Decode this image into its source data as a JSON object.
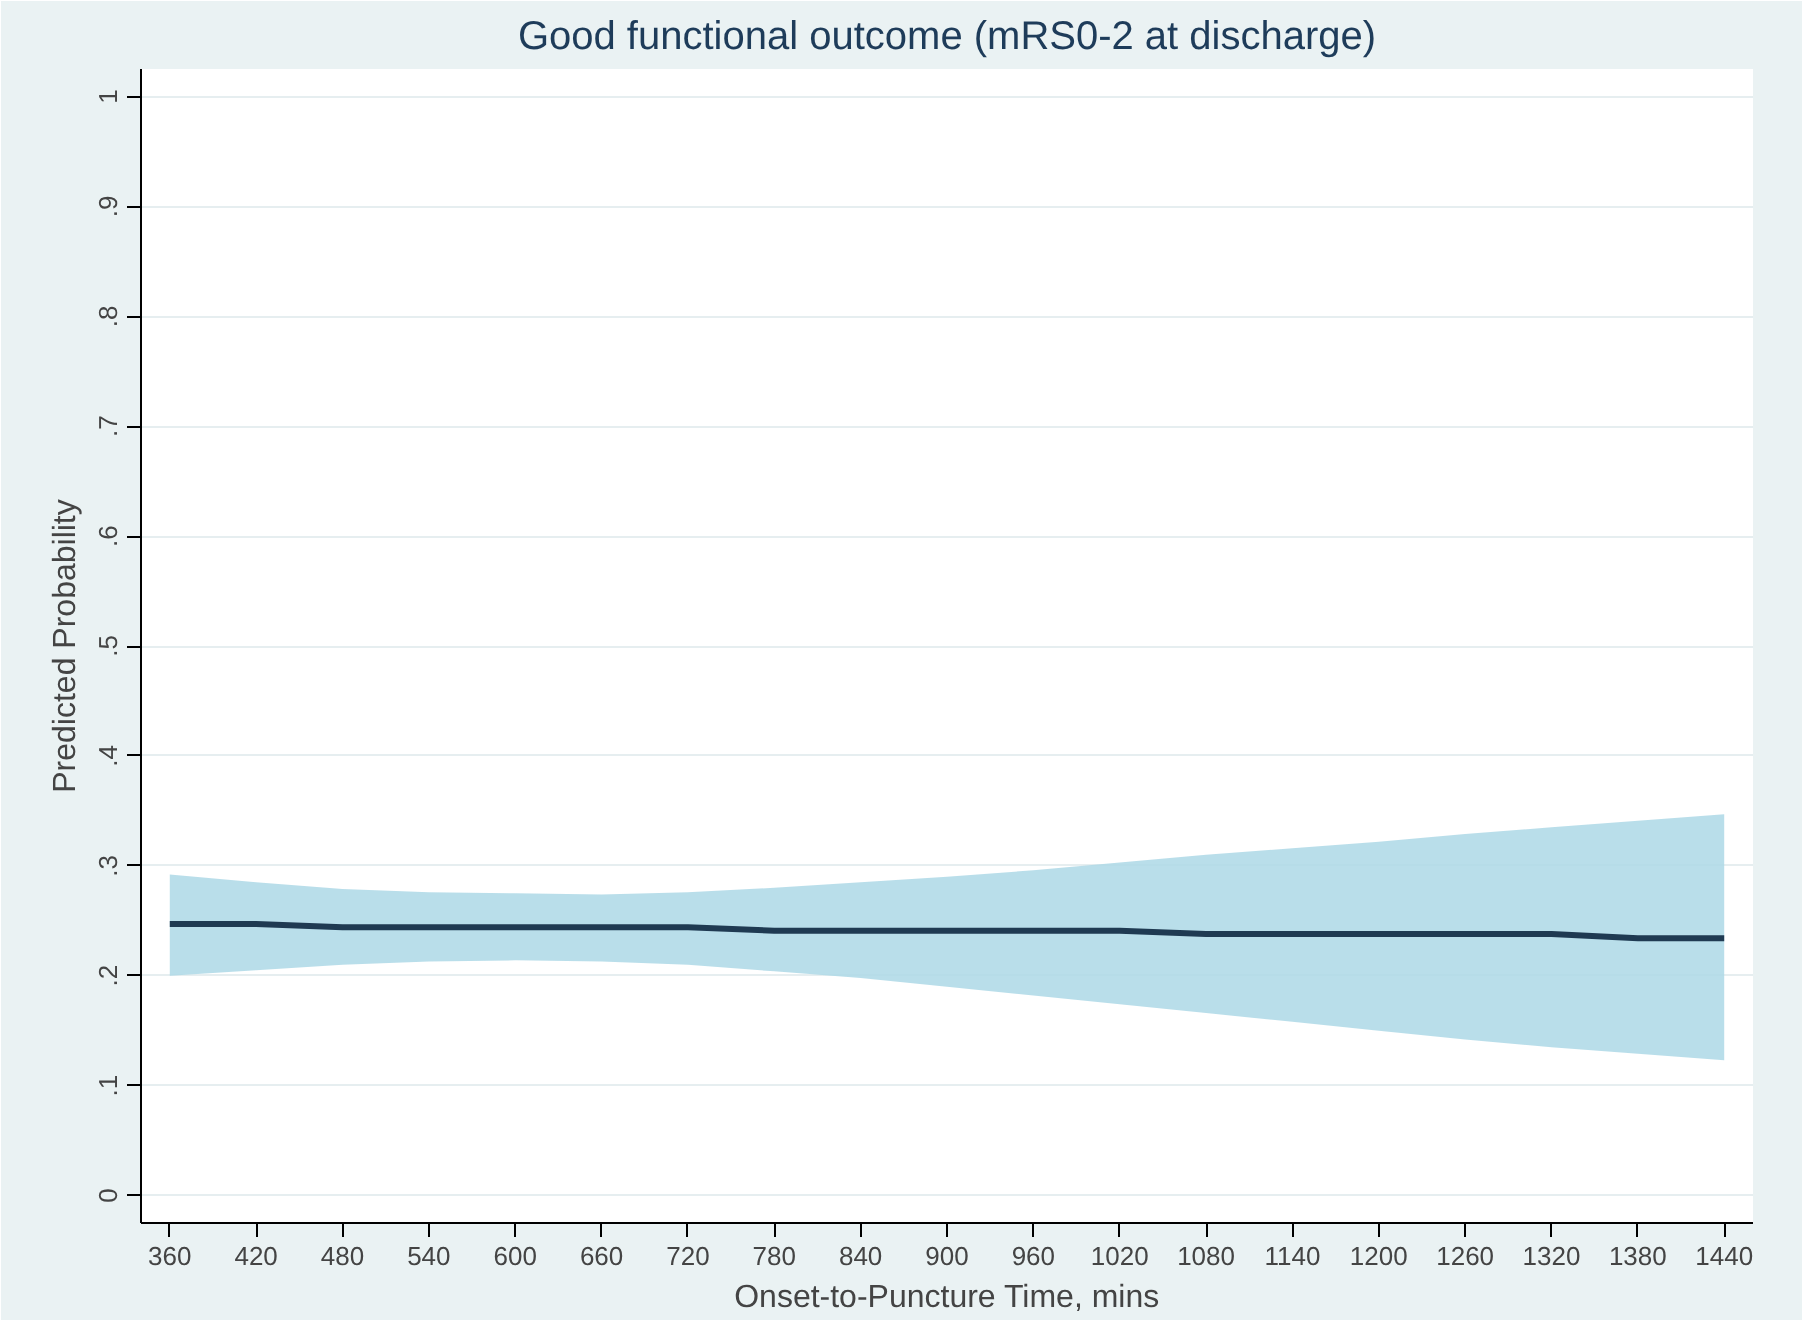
{
  "chart_data": {
    "type": "line",
    "title": "Good functional outcome (mRS0-2 at discharge)",
    "xlabel": "Onset-to-Puncture Time, mins",
    "ylabel": "Predicted Probability",
    "x": [
      360,
      420,
      480,
      540,
      600,
      660,
      720,
      780,
      840,
      900,
      960,
      1020,
      1080,
      1140,
      1200,
      1260,
      1320,
      1380,
      1440
    ],
    "series": [
      {
        "color": "#1f3a52",
        "values": [
          0.247,
          0.247,
          0.244,
          0.244,
          0.244,
          0.244,
          0.244,
          0.241,
          0.241,
          0.241,
          0.241,
          0.241,
          0.238,
          0.238,
          0.238,
          0.238,
          0.238,
          0.234,
          0.234
        ],
        "lower": [
          0.2,
          0.205,
          0.21,
          0.213,
          0.214,
          0.213,
          0.21,
          0.204,
          0.198,
          0.19,
          0.182,
          0.174,
          0.166,
          0.158,
          0.15,
          0.142,
          0.135,
          0.129,
          0.123
        ],
        "upper": [
          0.292,
          0.285,
          0.279,
          0.276,
          0.275,
          0.274,
          0.276,
          0.28,
          0.285,
          0.29,
          0.296,
          0.303,
          0.31,
          0.316,
          0.322,
          0.329,
          0.335,
          0.341,
          0.347
        ]
      }
    ],
    "xlim": [
      340,
      1460
    ],
    "ylim": [
      -0.025,
      1.025
    ],
    "xticks": [
      360,
      420,
      480,
      540,
      600,
      660,
      720,
      780,
      840,
      900,
      960,
      1020,
      1080,
      1140,
      1200,
      1260,
      1320,
      1380,
      1440
    ],
    "yticks": [
      0,
      {
        "value": 0.1,
        "label": ".1"
      },
      {
        "value": 0.2,
        "label": ".2"
      },
      {
        "value": 0.3,
        "label": ".3"
      },
      {
        "value": 0.4,
        "label": ".4"
      },
      {
        "value": 0.5,
        "label": ".5"
      },
      {
        "value": 0.6,
        "label": ".6"
      },
      {
        "value": 0.7,
        "label": ".7"
      },
      {
        "value": 0.8,
        "label": ".8"
      },
      {
        "value": 0.9,
        "label": ".9"
      },
      1
    ],
    "grid": "y",
    "line_style": "solid"
  }
}
